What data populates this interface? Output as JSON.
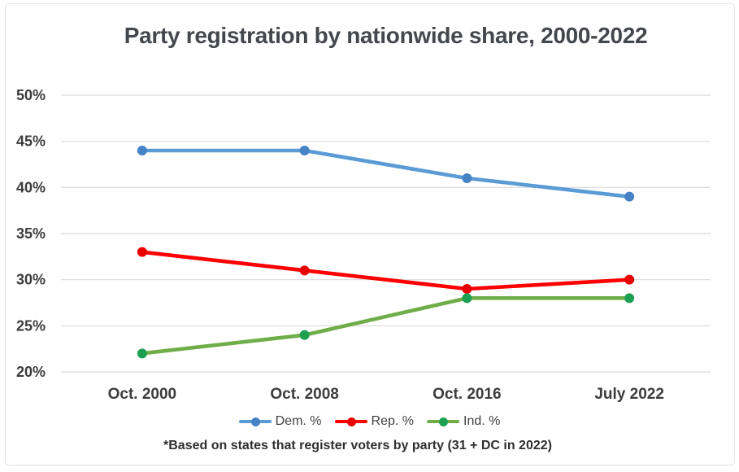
{
  "chart_data": {
    "type": "line",
    "title": "Party registration by nationwide share, 2000-2022",
    "categories": [
      "Oct. 2000",
      "Oct. 2008",
      "Oct. 2016",
      "July 2022"
    ],
    "series": [
      {
        "name": "Dem. %",
        "values": [
          44,
          44,
          41,
          39
        ],
        "line_color": "#5B9BD5",
        "marker_color": "#4583C6"
      },
      {
        "name": "Rep. %",
        "values": [
          33,
          31,
          29,
          30
        ],
        "line_color": "#FE0000",
        "marker_color": "#E90000"
      },
      {
        "name": "Ind. %",
        "values": [
          22,
          24,
          28,
          28
        ],
        "line_color": "#6FAD49",
        "marker_color": "#1EA052"
      }
    ],
    "y_axis": {
      "tick_labels": [
        "50%",
        "45%",
        "40%",
        "35%",
        "30%",
        "25%",
        "20%"
      ],
      "tick_values": [
        50,
        45,
        40,
        35,
        30,
        25,
        20
      ],
      "min": 20,
      "max": 50,
      "unit": "%"
    },
    "grid": "horizontal",
    "legend_position": "bottom",
    "footnote": "*Based on states that register voters by party (31 + DC in 2022)",
    "colors": {
      "gridline": "#D9D9D9",
      "title_text": "#44474C",
      "axis_text": "#3C3C3C",
      "legend_text": "#404040",
      "footnote_text": "#2F2F2F",
      "frame_border": "#E4E4E4",
      "background": "#FFFFFF"
    }
  }
}
